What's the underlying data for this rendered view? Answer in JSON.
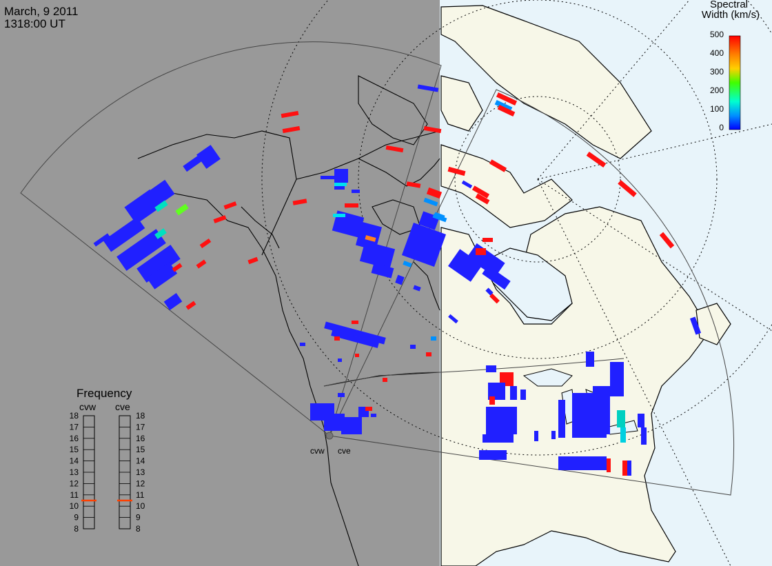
{
  "header": {
    "date": "March, 9 2011",
    "time": "1318:00 UT"
  },
  "colorbar": {
    "title_line1": "Spectral",
    "title_line2": "Width (km/s)",
    "ticks": [
      "500",
      "400",
      "300",
      "200",
      "100",
      "0"
    ],
    "colors": [
      "#ff0000",
      "#ff8000",
      "#ffd000",
      "#40ff00",
      "#00ffd0",
      "#0090ff",
      "#0000ff"
    ]
  },
  "frequency_panel": {
    "title": "Frequency",
    "radar_left": "cvw",
    "radar_right": "cve",
    "ticks": [
      "18",
      "17",
      "16",
      "15",
      "14",
      "13",
      "12",
      "11",
      "10",
      "9",
      "8"
    ],
    "cvw_frequency": 10.5,
    "cve_frequency": 10.5,
    "marker_color": "#ff4000"
  },
  "radars": [
    {
      "code": "cvw"
    },
    {
      "code": "cve"
    }
  ],
  "colors": {
    "night_shade": "#999999",
    "land_day": "#f7f7e8",
    "ocean_day": "#e8f4fa",
    "echo_low": "#2020ff",
    "echo_high": "#ff1010"
  }
}
